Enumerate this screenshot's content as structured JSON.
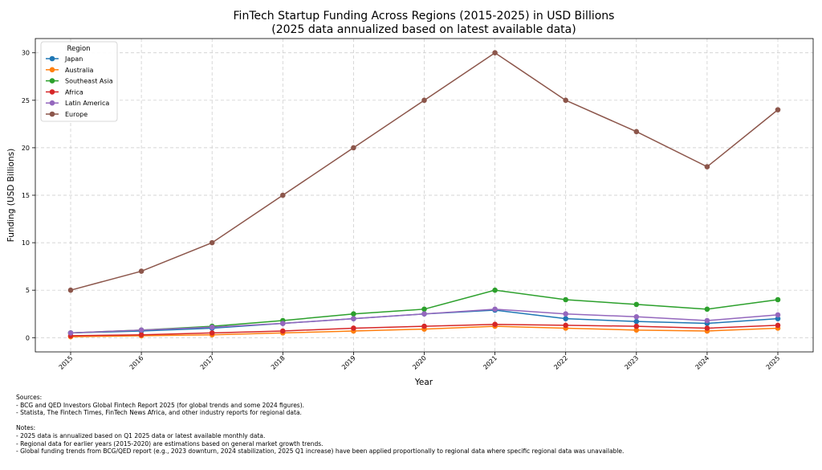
{
  "chart_data": {
    "type": "line",
    "title": "FinTech Startup Funding Across Regions (2015-2025) in USD Billions",
    "subtitle": "(2025 data annualized based on latest available data)",
    "xlabel": "Year",
    "ylabel": "Funding (USD Billions)",
    "categories": [
      "2015",
      "2016",
      "2017",
      "2018",
      "2019",
      "2020",
      "2021",
      "2022",
      "2023",
      "2024",
      "2025"
    ],
    "ylim": [
      -1.5,
      31.5
    ],
    "yticks": [
      0,
      5,
      10,
      15,
      20,
      25,
      30
    ],
    "grid": true,
    "legend": {
      "title": "Region",
      "placement": "top-left"
    },
    "series": [
      {
        "name": "Japan",
        "color": "#1f77b4",
        "values": [
          0.5,
          0.7,
          1.0,
          1.5,
          2.0,
          2.5,
          2.9,
          2.0,
          1.7,
          1.5,
          2.0
        ]
      },
      {
        "name": "Australia",
        "color": "#ff7f0e",
        "values": [
          0.1,
          0.2,
          0.3,
          0.5,
          0.7,
          0.9,
          1.2,
          1.0,
          0.8,
          0.7,
          1.0
        ]
      },
      {
        "name": "Southeast Asia",
        "color": "#2ca02c",
        "values": [
          0.5,
          0.8,
          1.2,
          1.8,
          2.5,
          3.0,
          5.0,
          4.0,
          3.5,
          3.0,
          4.0
        ]
      },
      {
        "name": "Africa",
        "color": "#d62728",
        "values": [
          0.2,
          0.3,
          0.5,
          0.7,
          1.0,
          1.2,
          1.4,
          1.3,
          1.2,
          1.0,
          1.3
        ]
      },
      {
        "name": "Latin America",
        "color": "#9467bd",
        "values": [
          0.5,
          0.8,
          1.1,
          1.5,
          2.0,
          2.5,
          3.0,
          2.5,
          2.2,
          1.8,
          2.4
        ]
      },
      {
        "name": "Europe",
        "color": "#8c564b",
        "values": [
          5.0,
          7.0,
          10.0,
          15.0,
          20.0,
          25.0,
          30.0,
          25.0,
          21.7,
          18.0,
          24.0
        ]
      }
    ]
  },
  "notes": {
    "sources_header": "Sources:",
    "sources": [
      "- BCG and QED Investors Global Fintech Report 2025 (for global trends and some 2024 figures).",
      "- Statista, The Fintech Times, FinTech News Africa, and other industry reports for regional data."
    ],
    "notes_header": "Notes:",
    "notes": [
      "- 2025 data is annualized based on Q1 2025 data or latest available monthly data.",
      "- Regional data for earlier years (2015-2020) are estimations based on general market growth trends.",
      "- Global funding trends from BCG/QED report (e.g., 2023 downturn, 2024 stabilization, 2025 Q1 increase) have been applied proportionally to regional data where specific regional data was unavailable."
    ]
  }
}
